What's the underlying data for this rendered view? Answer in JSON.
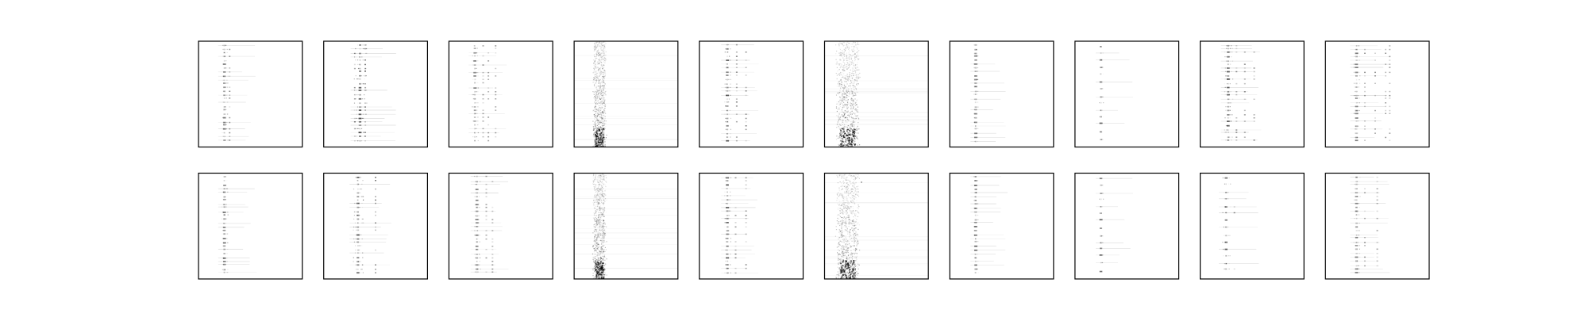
{
  "figure": {
    "background": "#ffffff",
    "frame_color": "#000000",
    "ink_color": "#000000"
  },
  "chart_data": {
    "type": "heatmap",
    "rows": 2,
    "cols": 10,
    "title": "",
    "xlabel": "",
    "ylabel": "",
    "ticks": "none",
    "colormap": "gray_r",
    "panels": [
      {
        "row": 0,
        "col": 0,
        "pattern": "stripes",
        "x_center": 0.25,
        "x_spread": 0.03,
        "neighbors": [
          0.3
        ],
        "intensity": 0.6
      },
      {
        "row": 0,
        "col": 1,
        "pattern": "stripes",
        "x_center": 0.35,
        "x_spread": 0.06,
        "neighbors": [
          0.3,
          0.4
        ],
        "intensity": 0.8
      },
      {
        "row": 0,
        "col": 2,
        "pattern": "stripes",
        "x_center": 0.25,
        "x_spread": 0.03,
        "neighbors": [
          0.33,
          0.38,
          0.45
        ],
        "intensity": 0.6
      },
      {
        "row": 0,
        "col": 3,
        "pattern": "band",
        "x_center": 0.24,
        "x_spread": 0.07,
        "neighbors": [],
        "intensity": 0.7
      },
      {
        "row": 0,
        "col": 4,
        "pattern": "stripes",
        "x_center": 0.27,
        "x_spread": 0.03,
        "neighbors": [
          0.36,
          0.45
        ],
        "intensity": 0.7
      },
      {
        "row": 0,
        "col": 5,
        "pattern": "band",
        "x_center": 0.22,
        "x_spread": 0.12,
        "neighbors": [],
        "intensity": 0.75
      },
      {
        "row": 0,
        "col": 6,
        "pattern": "stripes",
        "x_center": 0.25,
        "x_spread": 0.02,
        "neighbors": [],
        "intensity": 0.55
      },
      {
        "row": 0,
        "col": 7,
        "pattern": "sparse",
        "x_center": 0.25,
        "x_spread": 0.02,
        "neighbors": [],
        "intensity": 0.6
      },
      {
        "row": 0,
        "col": 8,
        "pattern": "stripes",
        "x_center": 0.27,
        "x_spread": 0.04,
        "neighbors": [
          0.35,
          0.43,
          0.52
        ],
        "intensity": 0.75
      },
      {
        "row": 0,
        "col": 9,
        "pattern": "stripes",
        "x_center": 0.3,
        "x_spread": 0.03,
        "neighbors": [
          0.38,
          0.48,
          0.58,
          0.62
        ],
        "intensity": 0.55
      },
      {
        "row": 1,
        "col": 0,
        "pattern": "stripes",
        "x_center": 0.25,
        "x_spread": 0.03,
        "neighbors": [],
        "intensity": 0.7
      },
      {
        "row": 1,
        "col": 1,
        "pattern": "stripes",
        "x_center": 0.33,
        "x_spread": 0.05,
        "neighbors": [
          0.5
        ],
        "intensity": 0.75
      },
      {
        "row": 1,
        "col": 2,
        "pattern": "stripes",
        "x_center": 0.27,
        "x_spread": 0.03,
        "neighbors": [
          0.36,
          0.42
        ],
        "intensity": 0.6
      },
      {
        "row": 1,
        "col": 3,
        "pattern": "band",
        "x_center": 0.24,
        "x_spread": 0.07,
        "neighbors": [],
        "intensity": 0.7
      },
      {
        "row": 1,
        "col": 4,
        "pattern": "stripes",
        "x_center": 0.27,
        "x_spread": 0.03,
        "neighbors": [
          0.35,
          0.45
        ],
        "intensity": 0.7
      },
      {
        "row": 1,
        "col": 5,
        "pattern": "band",
        "x_center": 0.22,
        "x_spread": 0.12,
        "neighbors": [
          0.35
        ],
        "intensity": 0.75
      },
      {
        "row": 1,
        "col": 6,
        "pattern": "stripes",
        "x_center": 0.25,
        "x_spread": 0.02,
        "neighbors": [],
        "intensity": 0.65
      },
      {
        "row": 1,
        "col": 7,
        "pattern": "sparse",
        "x_center": 0.25,
        "x_spread": 0.02,
        "neighbors": [],
        "intensity": 0.6
      },
      {
        "row": 1,
        "col": 8,
        "pattern": "sparse",
        "x_center": 0.25,
        "x_spread": 0.04,
        "neighbors": [
          0.33
        ],
        "intensity": 0.8
      },
      {
        "row": 1,
        "col": 9,
        "pattern": "stripes",
        "x_center": 0.3,
        "x_spread": 0.03,
        "neighbors": [
          0.38,
          0.5
        ],
        "intensity": 0.55
      }
    ]
  }
}
